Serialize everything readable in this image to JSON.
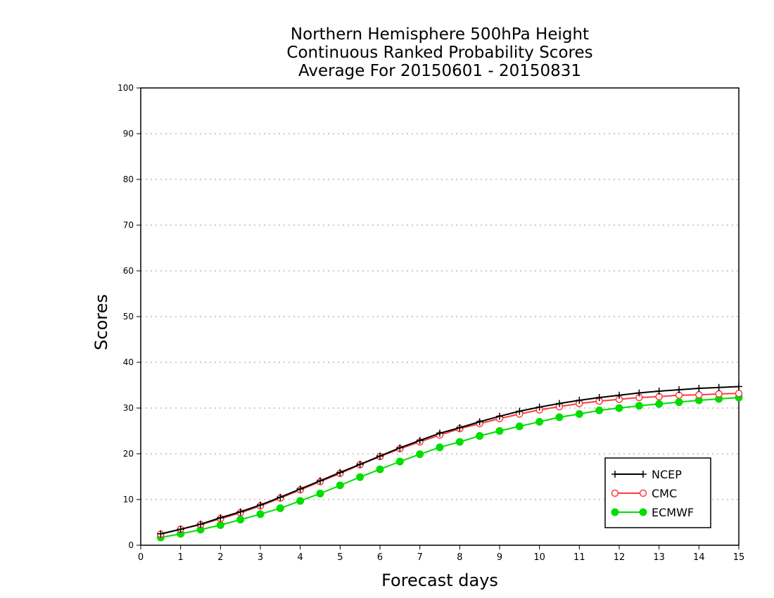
{
  "chart_data": {
    "type": "line",
    "title": [
      "Northern Hemisphere 500hPa Height",
      "Continuous Ranked Probability Scores",
      "Average For 20150601 - 20150831"
    ],
    "xlabel": "Forecast days",
    "ylabel": "Scores",
    "xlim": [
      0,
      15
    ],
    "ylim": [
      0,
      100
    ],
    "xticks": [
      0,
      1,
      2,
      3,
      4,
      5,
      6,
      7,
      8,
      9,
      10,
      11,
      12,
      13,
      14,
      15
    ],
    "yticks": [
      0,
      10,
      20,
      30,
      40,
      50,
      60,
      70,
      80,
      90,
      100
    ],
    "grid": "horizontal-dotted",
    "legend_position": "bottom-right",
    "x": [
      0.5,
      1,
      1.5,
      2,
      2.5,
      3,
      3.5,
      4,
      4.5,
      5,
      5.5,
      6,
      6.5,
      7,
      7.5,
      8,
      8.5,
      9,
      9.5,
      10,
      10.5,
      11,
      11.5,
      12,
      12.5,
      13,
      13.5,
      14,
      14.5,
      15
    ],
    "series": [
      {
        "name": "NCEP",
        "color": "#000000",
        "marker": "plus",
        "values": [
          2.5,
          3.5,
          4.6,
          6.0,
          7.3,
          8.8,
          10.5,
          12.3,
          14.1,
          15.9,
          17.7,
          19.5,
          21.3,
          22.9,
          24.5,
          25.7,
          27.0,
          28.2,
          29.3,
          30.2,
          31.0,
          31.7,
          32.3,
          32.8,
          33.3,
          33.7,
          34.0,
          34.3,
          34.5,
          34.7
        ]
      },
      {
        "name": "CMC",
        "color": "#ff3b3b",
        "marker": "open-circle",
        "values": [
          2.4,
          3.5,
          4.5,
          5.8,
          7.1,
          8.6,
          10.3,
          12.1,
          13.9,
          15.7,
          17.6,
          19.4,
          21.1,
          22.6,
          24.1,
          25.5,
          26.6,
          27.7,
          28.7,
          29.6,
          30.3,
          31.0,
          31.5,
          31.9,
          32.3,
          32.5,
          32.8,
          32.9,
          33.1,
          33.2
        ]
      },
      {
        "name": "ECMWF",
        "color": "#00dd00",
        "marker": "filled-circle",
        "values": [
          1.7,
          2.5,
          3.4,
          4.4,
          5.6,
          6.8,
          8.1,
          9.7,
          11.3,
          13.1,
          14.9,
          16.6,
          18.3,
          19.9,
          21.4,
          22.6,
          23.9,
          25.0,
          26.0,
          27.0,
          28.0,
          28.7,
          29.5,
          30.0,
          30.5,
          30.9,
          31.3,
          31.7,
          32.0,
          32.3
        ]
      }
    ]
  }
}
